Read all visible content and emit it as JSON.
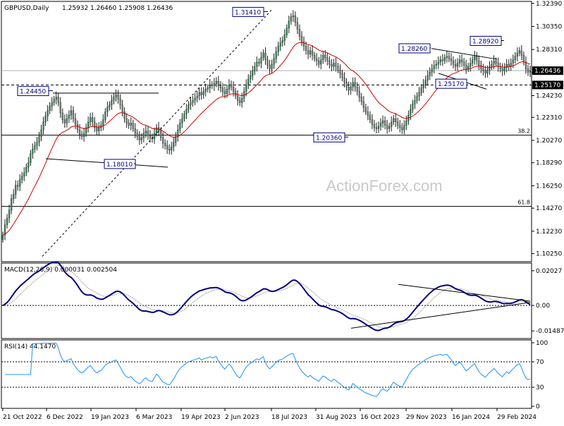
{
  "chart_data": [
    {
      "type": "candlestick",
      "title": "GBPUSD,Daily",
      "ohlc": {
        "open": "1.25932",
        "high": "1.26460",
        "low": "1.25908",
        "close": "1.26436"
      },
      "x_tick_labels": [
        "21 Oct 2022",
        "6 Dec 2022",
        "19 Jan 2023",
        "6 Mar 2023",
        "19 Apr 2023",
        "2 Jun 2023",
        "18 Jul 2023",
        "31 Aug 2023",
        "16 Oct 2023",
        "29 Nov 2023",
        "16 Jan 2024",
        "29 Feb 2024"
      ],
      "y_tick_labels": [
        "1.32390",
        "1.30350",
        "1.28310",
        "1.26270",
        "1.24230",
        "1.22310",
        "1.20270",
        "1.18290",
        "1.16250",
        "1.14270",
        "1.12230",
        "1.10250"
      ],
      "ylim": [
        1.096,
        1.325
      ],
      "current_price_label": "1.26436",
      "support_level_label": "1.25170",
      "annotations": [
        "1.31410",
        "1.24450",
        "1.18010",
        "1.20360",
        "1.28260",
        "1.28920",
        "1.25170"
      ],
      "fib_levels": [
        {
          "label": "38.2",
          "value": 1.2073
        },
        {
          "label": "61.8",
          "value": 1.1443
        }
      ],
      "watermark": "ActionForex.com",
      "series": [
        {
          "name": "",
          "type": "candles",
          "style": "green-grey"
        },
        {
          "name": "",
          "type": "line",
          "color": "#d00000"
        }
      ],
      "closes": [
        1.119,
        1.128,
        1.134,
        1.141,
        1.151,
        1.155,
        1.163,
        1.162,
        1.168,
        1.171,
        1.174,
        1.179,
        1.183,
        1.191,
        1.195,
        1.198,
        1.201,
        1.206,
        1.212,
        1.219,
        1.224,
        1.229,
        1.233,
        1.236,
        1.239,
        1.241,
        1.236,
        1.227,
        1.221,
        1.218,
        1.222,
        1.225,
        1.229,
        1.222,
        1.217,
        1.212,
        1.208,
        1.206,
        1.209,
        1.214,
        1.219,
        1.223,
        1.219,
        1.214,
        1.211,
        1.214,
        1.216,
        1.221,
        1.228,
        1.232,
        1.234,
        1.238,
        1.241,
        1.243,
        1.239,
        1.234,
        1.228,
        1.222,
        1.218,
        1.216,
        1.218,
        1.213,
        1.209,
        1.206,
        1.203,
        1.205,
        1.209,
        1.211,
        1.207,
        1.205,
        1.204,
        1.209,
        1.214,
        1.211,
        1.205,
        1.2,
        1.198,
        1.195,
        1.194,
        1.197,
        1.201,
        1.206,
        1.212,
        1.218,
        1.222,
        1.226,
        1.23,
        1.234,
        1.236,
        1.238,
        1.24,
        1.242,
        1.245,
        1.243,
        1.246,
        1.248,
        1.249,
        1.252,
        1.251,
        1.253,
        1.255,
        1.251,
        1.249,
        1.246,
        1.244,
        1.248,
        1.252,
        1.25,
        1.246,
        1.242,
        1.238,
        1.236,
        1.24,
        1.246,
        1.252,
        1.257,
        1.26,
        1.264,
        1.268,
        1.272,
        1.271,
        1.276,
        1.28,
        1.274,
        1.269,
        1.266,
        1.27,
        1.275,
        1.281,
        1.286,
        1.289,
        1.291,
        1.296,
        1.302,
        1.308,
        1.312,
        1.313,
        1.307,
        1.301,
        1.295,
        1.29,
        1.286,
        1.282,
        1.279,
        1.282,
        1.278,
        1.275,
        1.273,
        1.27,
        1.274,
        1.278,
        1.276,
        1.273,
        1.27,
        1.268,
        1.271,
        1.268,
        1.265,
        1.262,
        1.258,
        1.254,
        1.25,
        1.247,
        1.25,
        1.254,
        1.25,
        1.246,
        1.241,
        1.237,
        1.232,
        1.228,
        1.225,
        1.221,
        1.217,
        1.214,
        1.213,
        1.215,
        1.218,
        1.22,
        1.216,
        1.213,
        1.215,
        1.219,
        1.222,
        1.219,
        1.216,
        1.214,
        1.212,
        1.216,
        1.22,
        1.225,
        1.23,
        1.235,
        1.238,
        1.242,
        1.245,
        1.249,
        1.252,
        1.256,
        1.26,
        1.263,
        1.266,
        1.269,
        1.27,
        1.272,
        1.274,
        1.273,
        1.276,
        1.277,
        1.275,
        1.273,
        1.27,
        1.268,
        1.271,
        1.274,
        1.272,
        1.269,
        1.266,
        1.268,
        1.271,
        1.274,
        1.277,
        1.273,
        1.269,
        1.266,
        1.264,
        1.262,
        1.265,
        1.268,
        1.27,
        1.273,
        1.271,
        1.268,
        1.266,
        1.264,
        1.267,
        1.27,
        1.268,
        1.271,
        1.274,
        1.277,
        1.28,
        1.282,
        1.278,
        1.272,
        1.266,
        1.263,
        1.264
      ]
    },
    {
      "type": "line",
      "title": "MACD(12,26,9) 0.000031 0.002504",
      "y_tick_labels": [
        "0.02027",
        "0.00",
        "-0.014877"
      ],
      "ylim": [
        -0.0185,
        0.0235
      ],
      "current_value_label": "0.00",
      "series": [
        {
          "name": "",
          "color": "#000080"
        },
        {
          "name": "",
          "color": "#a0a0a0",
          "style": "dotted"
        }
      ]
    },
    {
      "type": "line",
      "title": "RSI(14) 44.1470",
      "y_tick_labels": [
        "100",
        "70",
        "30",
        "0"
      ],
      "ylim": [
        0,
        100
      ],
      "levels": [
        70,
        30
      ],
      "series": [
        {
          "name": "",
          "color": "#1e90ff"
        }
      ]
    }
  ]
}
